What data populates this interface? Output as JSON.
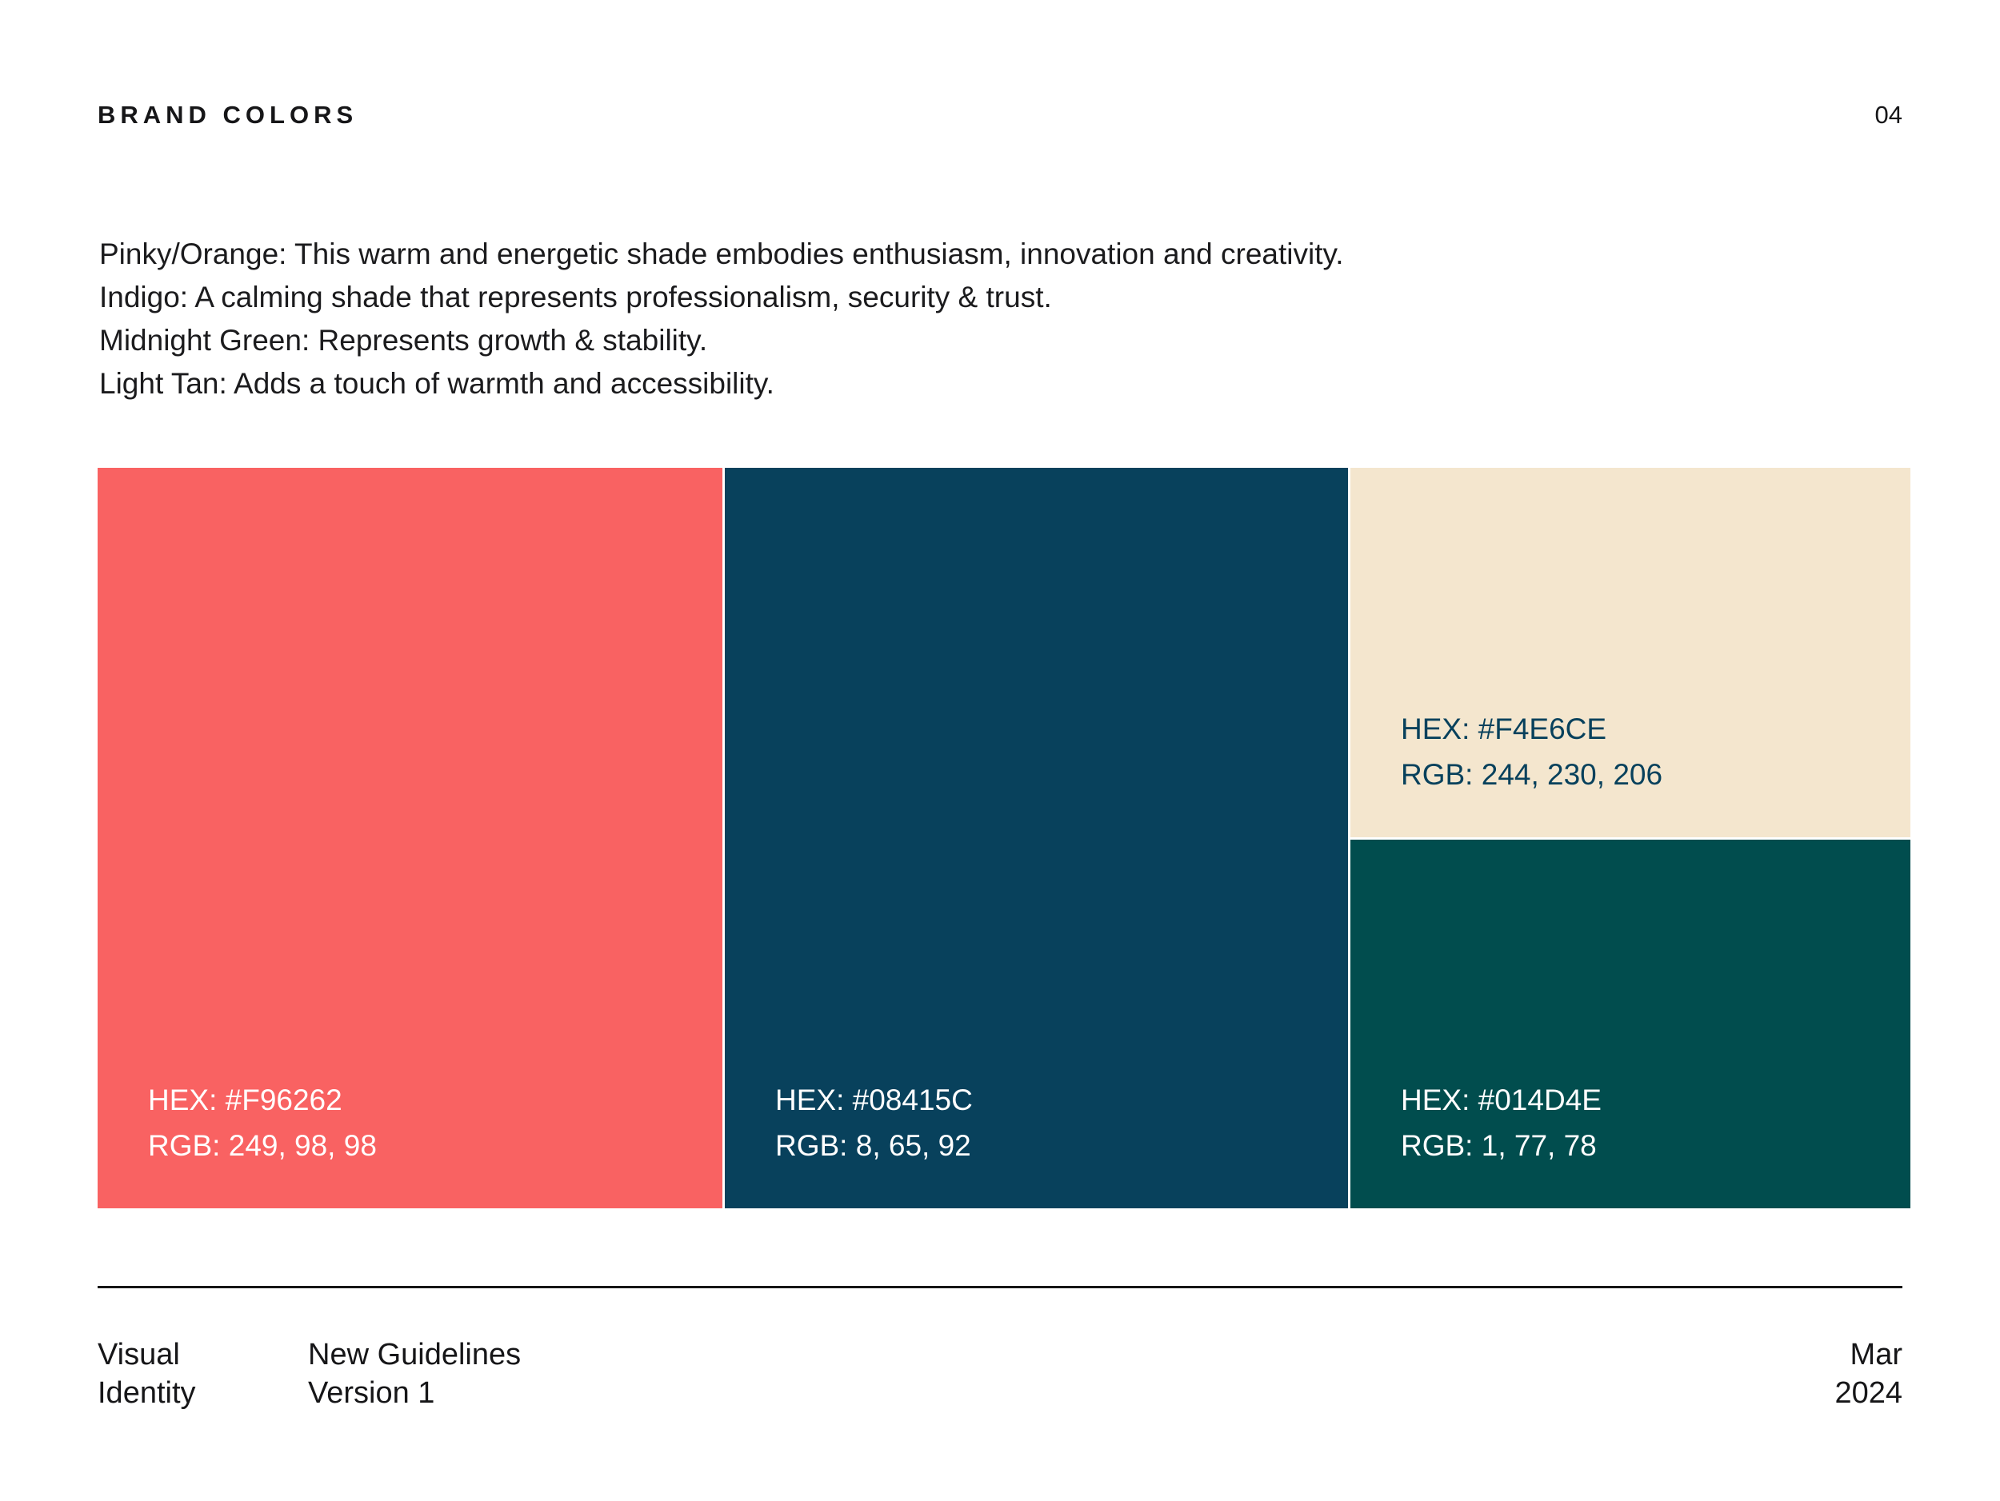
{
  "header": {
    "title": "BRAND COLORS",
    "page_number": "04"
  },
  "description": {
    "lines": [
      "Pinky/Orange: This warm and energetic shade embodies enthusiasm, innovation and creativity.",
      "Indigo: A calming shade that represents professionalism, security & trust.",
      "Midnight Green: Represents growth & stability.",
      "Light Tan: Adds a touch of warmth and accessibility."
    ]
  },
  "swatches": [
    {
      "name": "Pinky/Orange",
      "hex_label": "HEX: #F96262",
      "rgb_label": "RGB: 249, 98, 98",
      "color": "#F96262",
      "label_color": "#FFFFFF"
    },
    {
      "name": "Indigo",
      "hex_label": "HEX: #08415C",
      "rgb_label": "RGB: 8, 65, 92",
      "color": "#08415C",
      "label_color": "#FFFFFF"
    },
    {
      "name": "Light Tan",
      "hex_label": "HEX: #F4E6CE",
      "rgb_label": "RGB: 244, 230, 206",
      "color": "#F4E6CE",
      "label_color": "#08415C"
    },
    {
      "name": "Midnight Green",
      "hex_label": "HEX: #014D4E",
      "rgb_label": "RGB: 1, 77, 78",
      "color": "#014D4E",
      "label_color": "#FFFFFF"
    }
  ],
  "footer": {
    "doc_line1": "Visual",
    "doc_line2": "Identity",
    "version_line1": "New Guidelines",
    "version_line2": "Version 1",
    "date_line1": "Mar",
    "date_line2": "2024"
  }
}
